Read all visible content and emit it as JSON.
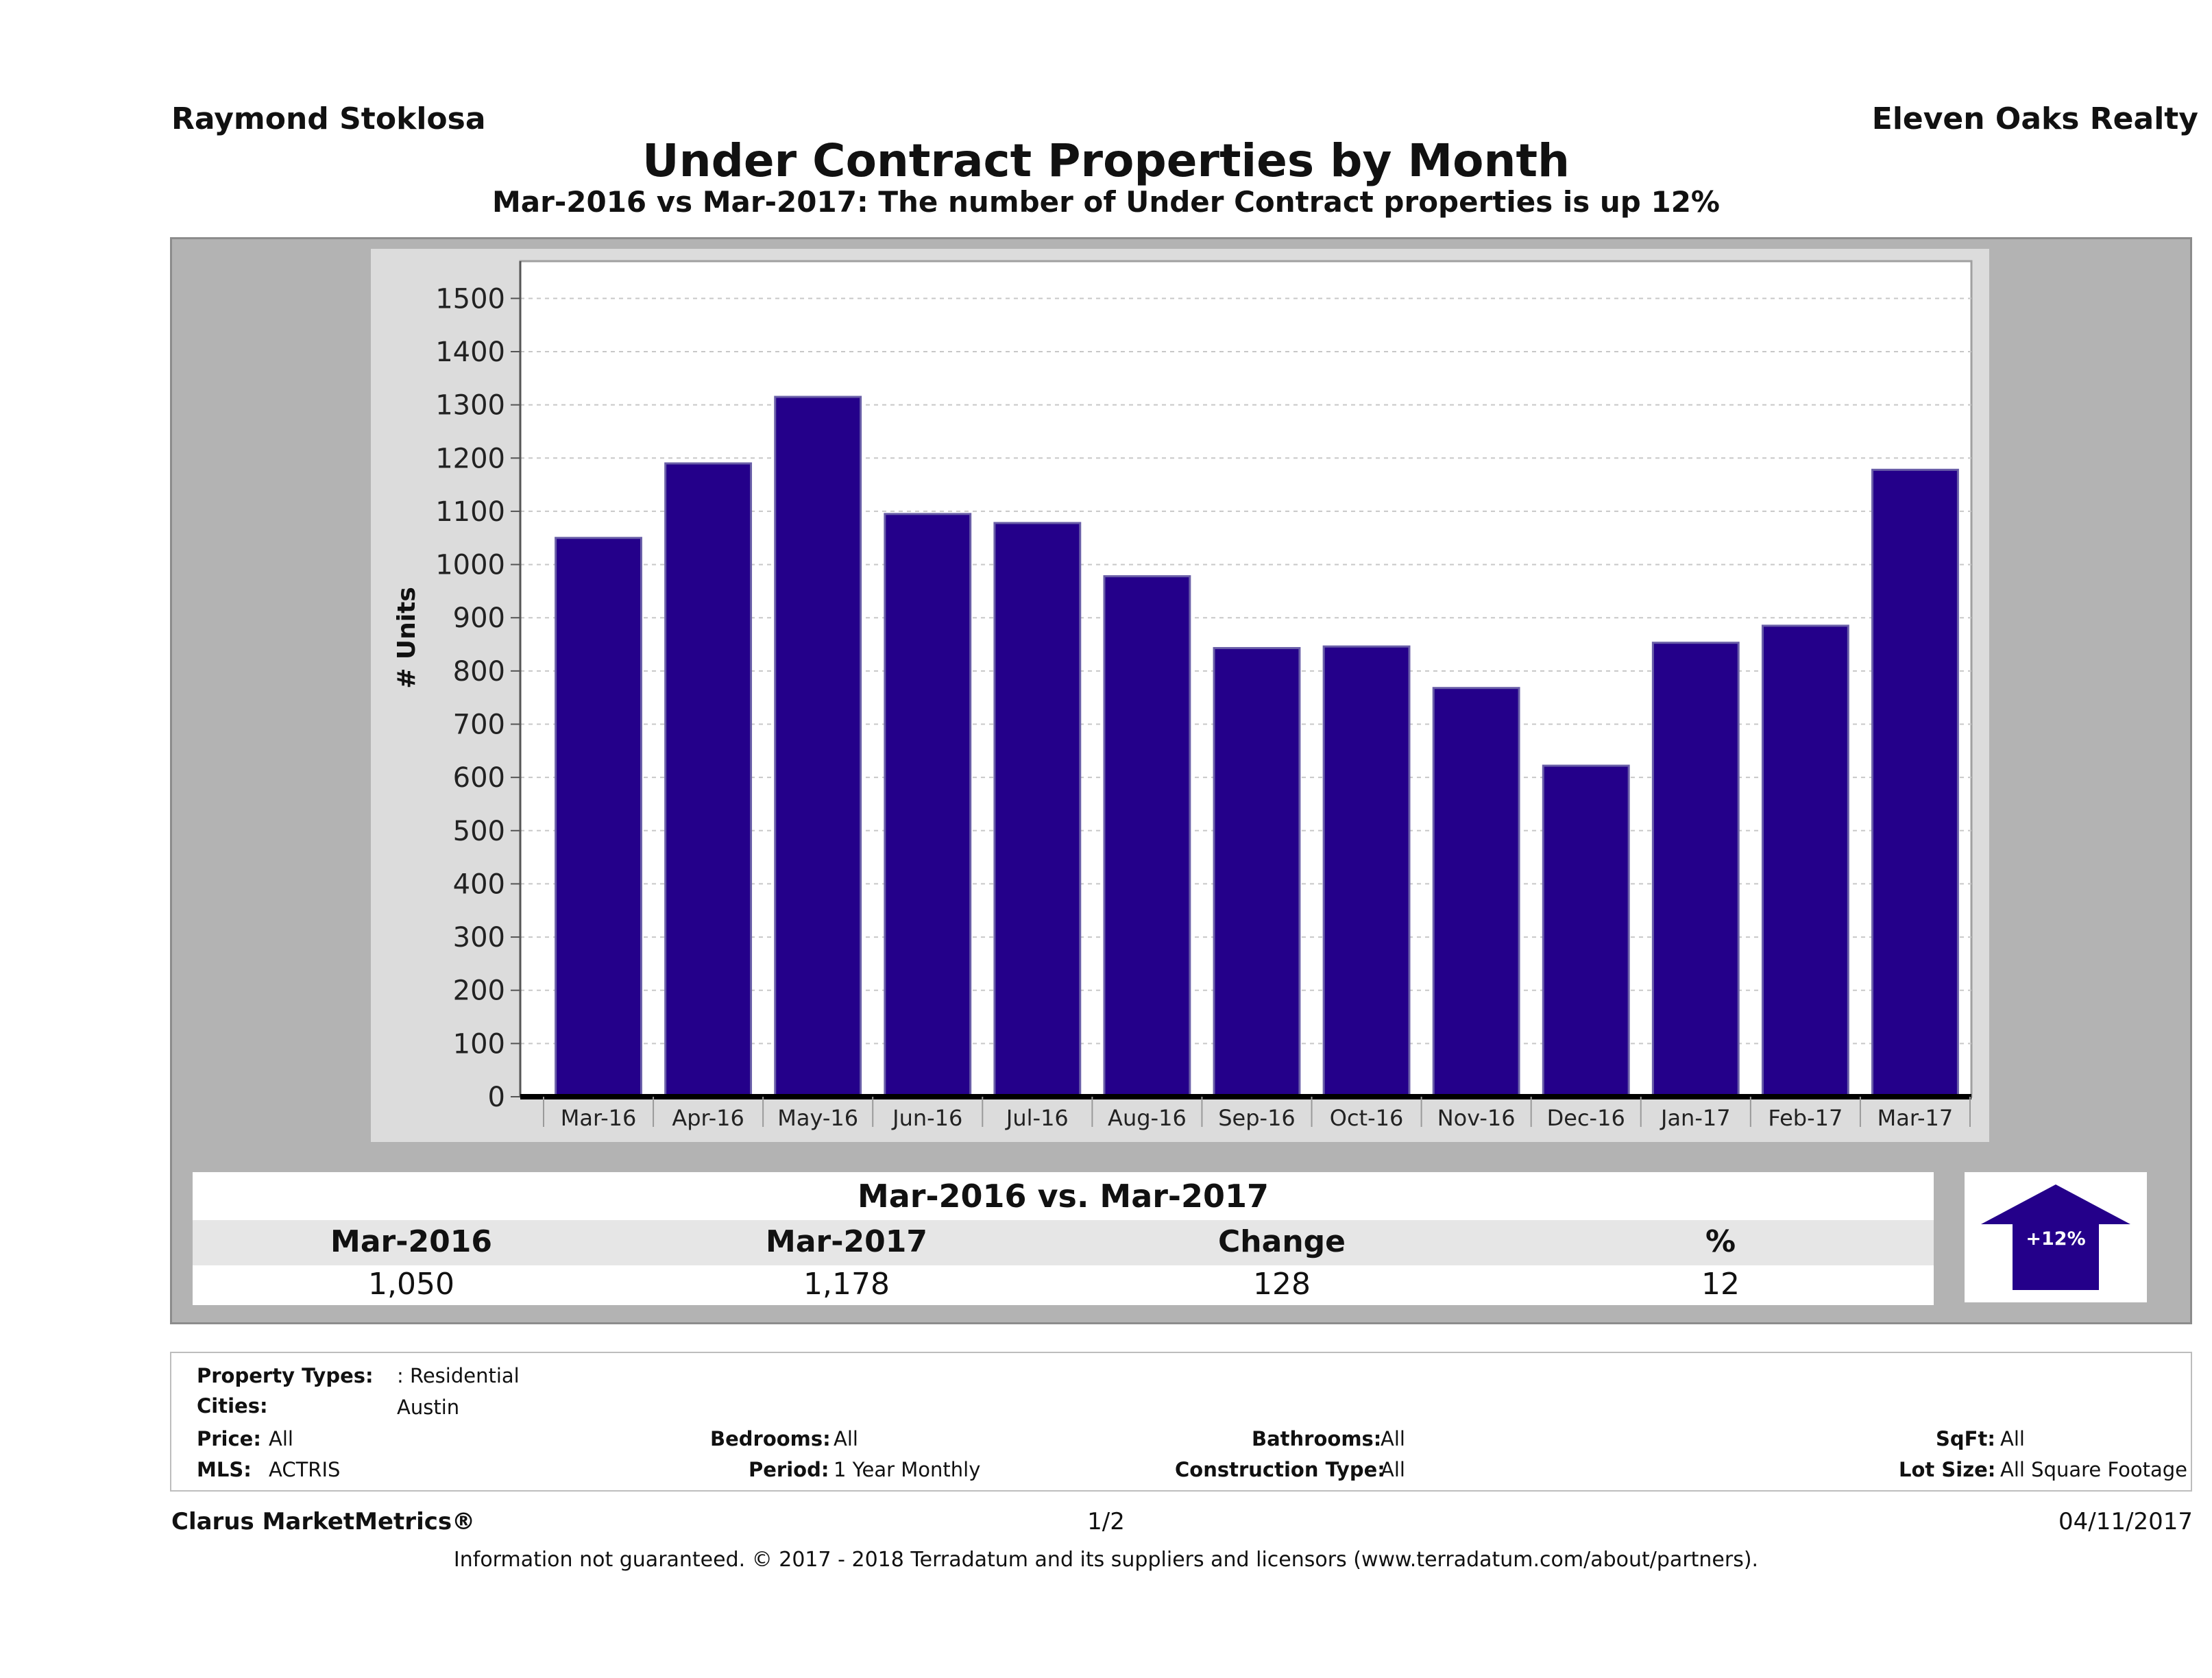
{
  "header": {
    "agent": "Raymond Stoklosa",
    "brokerage": "Eleven Oaks Realty",
    "title": "Under Contract Properties by Month",
    "subtitle": "Mar-2016 vs Mar-2017: The number of Under Contract  properties is up 12%"
  },
  "chart_data": {
    "type": "bar",
    "categories": [
      "Mar-16",
      "Apr-16",
      "May-16",
      "Jun-16",
      "Jul-16",
      "Aug-16",
      "Sep-16",
      "Oct-16",
      "Nov-16",
      "Dec-16",
      "Jan-17",
      "Feb-17",
      "Mar-17"
    ],
    "values": [
      1050,
      1190,
      1315,
      1095,
      1078,
      978,
      843,
      846,
      768,
      622,
      853,
      885,
      1178
    ],
    "ylabel": "# Units",
    "xlabel": "",
    "ylim": [
      0,
      1570
    ],
    "yticks": [
      0,
      100,
      200,
      300,
      400,
      500,
      600,
      700,
      800,
      900,
      1000,
      1100,
      1200,
      1300,
      1400,
      1500
    ],
    "grid": true,
    "bar_color": "#24008a"
  },
  "summary": {
    "heading": "Mar-2016 vs. Mar-2017",
    "labels": [
      "Mar-2016",
      "Mar-2017",
      "Change",
      "%"
    ],
    "values": [
      "1,050",
      "1,178",
      "128",
      "12"
    ],
    "badge": "+12%",
    "badge_color": "#24008a"
  },
  "info": {
    "property_types_label": "Property Types:",
    "property_types_value": ": Residential",
    "cities_label": "Cities:",
    "cities_value": "Austin",
    "price_label": "Price:",
    "price_value": "All",
    "bedrooms_label": "Bedrooms:",
    "bedrooms_value": "All",
    "bathrooms_label": "Bathrooms:",
    "bathrooms_value": "All",
    "sqft_label": "SqFt:",
    "sqft_value": "All",
    "mls_label": "MLS:",
    "mls_value": "ACTRIS",
    "period_label": "Period:",
    "period_value": "1 Year Monthly",
    "construction_label": "Construction Type:",
    "construction_value": "All",
    "lot_label": "Lot Size:",
    "lot_value": "All Square Footage"
  },
  "footer": {
    "brand": "Clarus MarketMetrics®",
    "page": "1/2",
    "date": "04/11/2017",
    "disclaimer": "Information not guaranteed. © 2017 - 2018 Terradatum and its suppliers and licensors (www.terradatum.com/about/partners)."
  }
}
